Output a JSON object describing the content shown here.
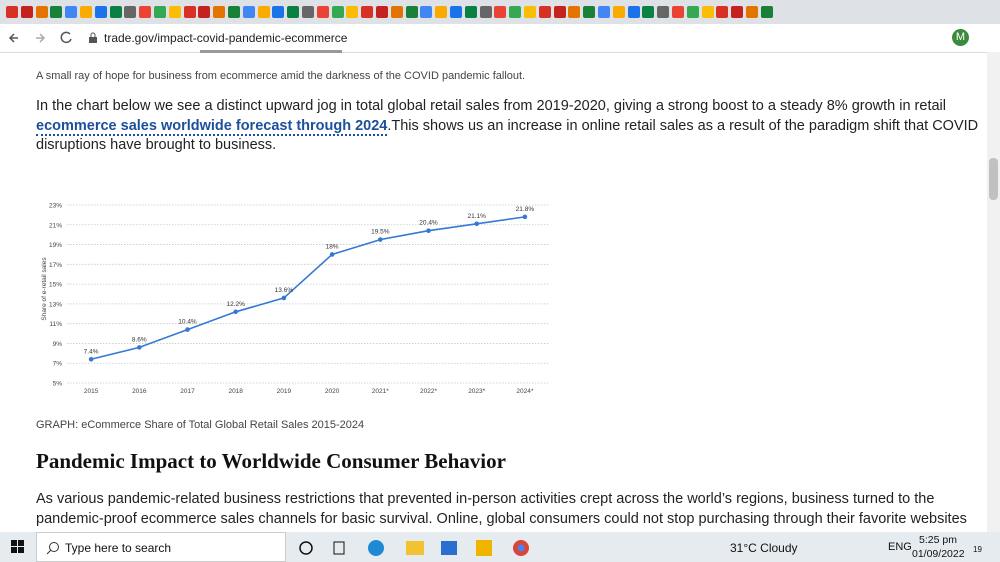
{
  "browser": {
    "url": "trade.gov/impact-covid-pandemic-ecommerce",
    "profile_initial": "M"
  },
  "article": {
    "image_caption": "A small ray of hope for business from ecommerce amid the darkness of the COVID pandemic fallout.",
    "paragraph_1": {
      "line_1": "In the chart below we see a distinct upward jog in total global retail sales from 2019-2020, giving a strong boost to a steady 8% growth in retail",
      "link": "ecommerce sales worldwide forecast through 2024",
      "line_2_rest": ".This shows us an increase in online retail sales as a result of the paradigm shift that COVID",
      "line_3": "disruptions have brought to business."
    },
    "graph_caption": "GRAPH: eCommerce Share of Total Global Retail Sales 2015-2024",
    "heading": "Pandemic Impact to Worldwide Consumer Behavior",
    "paragraph_2": [
      "As various pandemic-related business restrictions that prevented in-person activities crept across the world’s regions, business turned to the",
      "pandemic-proof ecommerce sales channels for basic survival. Online, global consumers could not stop purchasing through their favorite websites"
    ]
  },
  "chart_data": {
    "type": "line",
    "y_label": "Share of e-retail sales",
    "categories": [
      "2015",
      "2016",
      "2017",
      "2018",
      "2019",
      "2020",
      "2021*",
      "2022*",
      "2023*",
      "2024*"
    ],
    "values": [
      7.4,
      8.6,
      10.4,
      12.2,
      13.6,
      18,
      19.5,
      20.4,
      21.1,
      21.8
    ],
    "value_labels": [
      "7.4%",
      "8.6%",
      "10.4%",
      "12.2%",
      "13.6%",
      "18%",
      "19.5%",
      "20.4%",
      "21.1%",
      "21.8%"
    ],
    "color": "#3479d4",
    "ylim": [
      5,
      23
    ],
    "yticks": [
      {
        "value": 5,
        "label": "5%"
      },
      {
        "value": 7,
        "label": "7%"
      },
      {
        "value": 9,
        "label": "9%"
      },
      {
        "value": 11,
        "label": "11%"
      },
      {
        "value": 13,
        "label": "13%"
      },
      {
        "value": 15,
        "label": "15%"
      },
      {
        "value": 17,
        "label": "17%"
      },
      {
        "value": 19,
        "label": "19%"
      },
      {
        "value": 21,
        "label": "21%"
      },
      {
        "value": 23,
        "label": "23%"
      }
    ],
    "grid": true
  },
  "taskbar": {
    "search": "Type here to search",
    "weather": "31°C  Cloudy",
    "language": "ENG",
    "time": "5:25 pm",
    "date": "01/09/2022",
    "notifications": "19"
  }
}
